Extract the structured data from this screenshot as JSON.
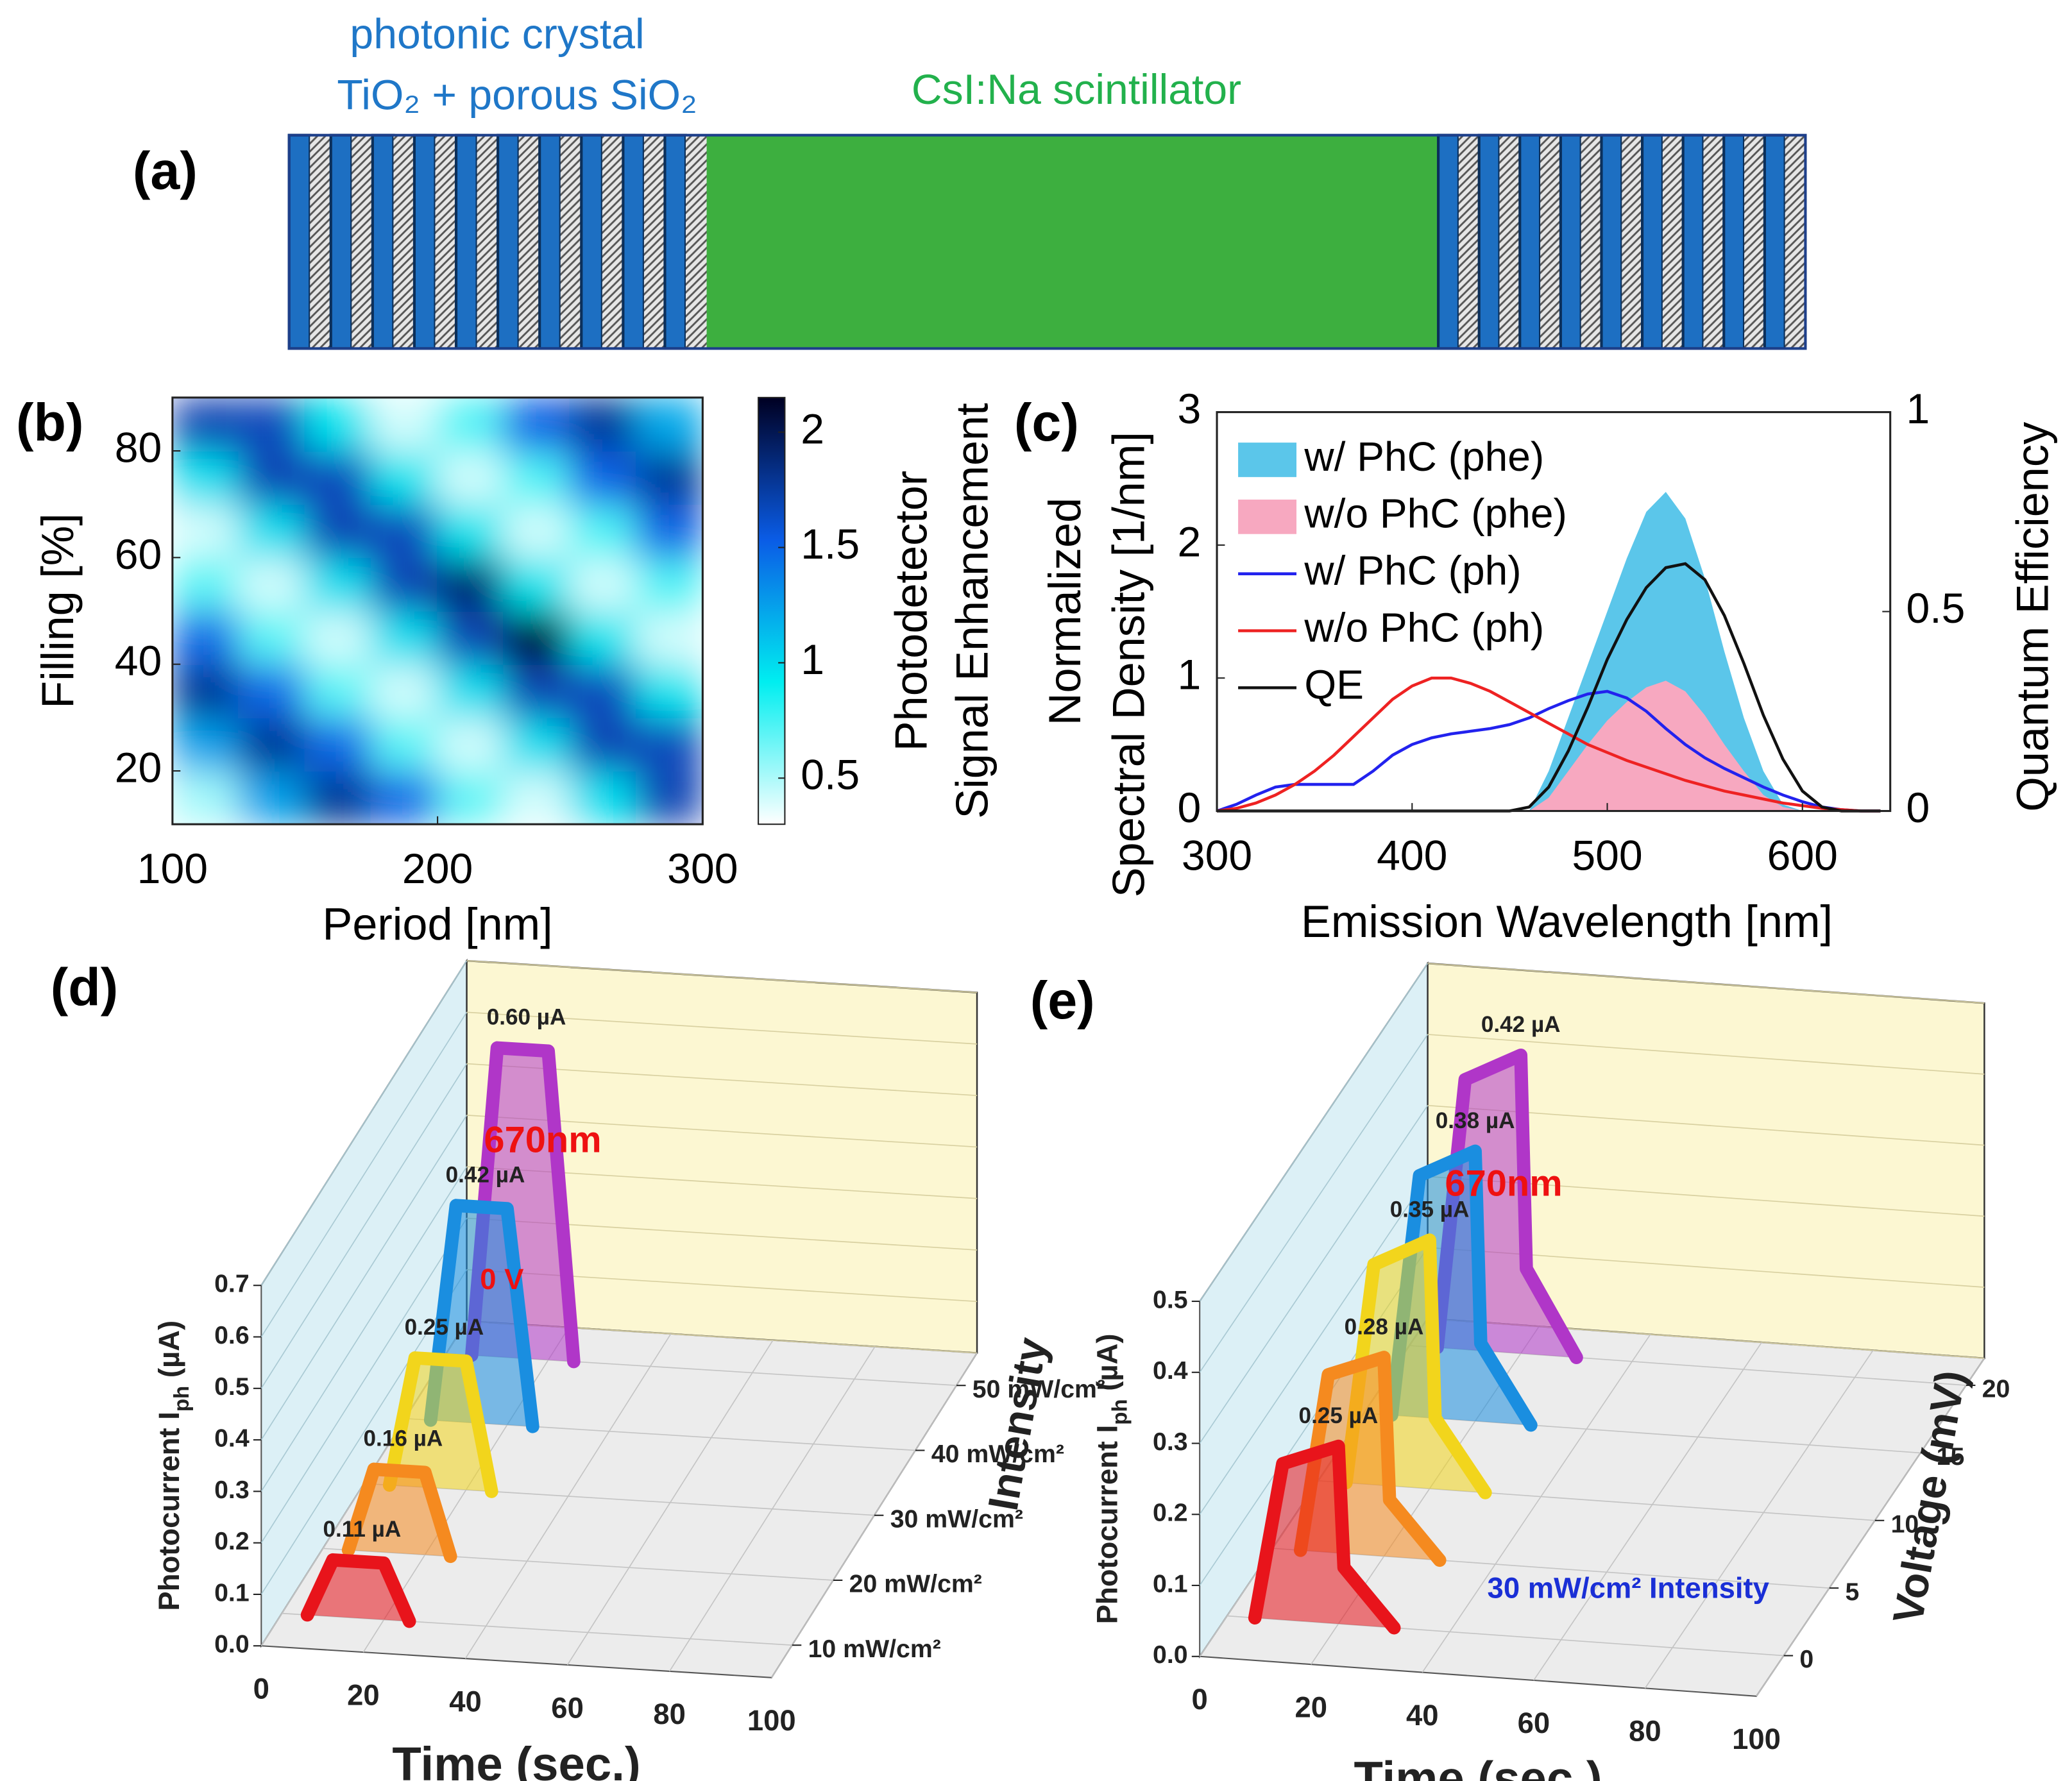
{
  "panel_a": {
    "label": "(a)",
    "crystal": [
      "photonic crystal",
      "TiO₂ + porous SiO₂"
    ],
    "scintillator": "CsI:Na scintillator"
  },
  "chart_data": [
    {
      "type": "heatmap",
      "panel": "(b)",
      "x": [
        112.5,
        137.5,
        162.5,
        187.5,
        212.5,
        237.5,
        262.5,
        287.5
      ],
      "y": [
        15,
        25,
        35,
        45,
        55,
        65,
        75,
        85
      ],
      "z": [
        [
          0.52,
          1.24,
          1.79,
          1.48,
          0.7,
          0.41,
          0.98,
          1.69
        ],
        [
          1.24,
          1.79,
          1.48,
          0.7,
          0.41,
          0.98,
          1.69,
          1.67
        ],
        [
          1.79,
          1.48,
          0.7,
          0.41,
          0.98,
          1.69,
          1.67,
          0.95
        ],
        [
          1.48,
          0.7,
          0.41,
          0.98,
          1.69,
          2.1,
          0.95,
          0.41
        ],
        [
          0.7,
          0.41,
          0.98,
          1.69,
          1.9,
          0.95,
          0.41,
          0.73
        ],
        [
          0.41,
          0.98,
          1.69,
          1.67,
          0.95,
          0.41,
          0.73,
          1.51
        ],
        [
          0.98,
          1.69,
          1.67,
          0.95,
          0.41,
          0.73,
          1.51,
          1.78
        ],
        [
          1.69,
          1.67,
          0.95,
          0.41,
          0.73,
          1.51,
          1.78,
          1.21
        ]
      ],
      "xlim": [
        100,
        300
      ],
      "ylim": [
        10,
        90
      ],
      "xticks": [
        100,
        200,
        300
      ],
      "yticks": [
        20,
        40,
        60,
        80
      ],
      "xlabel": "Period [nm]",
      "ylabel": "Filling  [%]",
      "colormap": [
        "#ffffff",
        "#00eef0",
        "#0a5ce6",
        "#000022"
      ],
      "clim": [
        0.3,
        2.15
      ],
      "colorbar_ticks": [
        0.5,
        1,
        1.5,
        2
      ],
      "colorbar_label": [
        "Photodetector",
        "Signal Enhancement"
      ]
    },
    {
      "type": "line",
      "panel": "(c)",
      "x": [
        300,
        310,
        320,
        330,
        340,
        350,
        360,
        370,
        380,
        390,
        400,
        410,
        420,
        430,
        440,
        450,
        460,
        470,
        480,
        490,
        500,
        510,
        520,
        530,
        540,
        550,
        560,
        570,
        580,
        590,
        600,
        610,
        620,
        630,
        640
      ],
      "series": [
        {
          "name": "w/ PhC (phe)",
          "color": "#5bc6ea",
          "style": "area",
          "values": [
            0,
            0,
            0,
            0,
            0,
            0,
            0,
            0,
            0,
            0,
            0,
            0,
            0,
            0,
            0,
            0,
            0,
            0.3,
            0.7,
            1.1,
            1.5,
            1.9,
            2.25,
            2.4,
            2.2,
            1.75,
            1.2,
            0.7,
            0.3,
            0.05,
            0,
            0,
            0,
            0,
            0
          ]
        },
        {
          "name": "w/o PhC (phe)",
          "color": "#f7a8c0",
          "style": "area",
          "values": [
            0,
            0,
            0,
            0,
            0,
            0,
            0,
            0,
            0,
            0,
            0,
            0,
            0,
            0,
            0,
            0,
            0,
            0.1,
            0.3,
            0.5,
            0.68,
            0.82,
            0.93,
            0.98,
            0.9,
            0.72,
            0.5,
            0.3,
            0.12,
            0.03,
            0,
            0,
            0,
            0,
            0
          ]
        },
        {
          "name": "w/ PhC (ph)",
          "color": "#2222ee",
          "style": "line",
          "values": [
            0,
            0.05,
            0.12,
            0.18,
            0.2,
            0.2,
            0.2,
            0.2,
            0.3,
            0.42,
            0.5,
            0.55,
            0.58,
            0.6,
            0.62,
            0.65,
            0.7,
            0.77,
            0.83,
            0.88,
            0.9,
            0.85,
            0.75,
            0.62,
            0.5,
            0.4,
            0.32,
            0.25,
            0.18,
            0.12,
            0.07,
            0.03,
            0.01,
            0,
            0
          ]
        },
        {
          "name": "w/o PhC (ph)",
          "color": "#ee2222",
          "style": "line",
          "values": [
            0,
            0.02,
            0.06,
            0.12,
            0.2,
            0.3,
            0.42,
            0.56,
            0.7,
            0.84,
            0.94,
            1.0,
            1.0,
            0.96,
            0.9,
            0.82,
            0.74,
            0.66,
            0.58,
            0.5,
            0.44,
            0.38,
            0.33,
            0.28,
            0.23,
            0.19,
            0.15,
            0.12,
            0.09,
            0.06,
            0.04,
            0.02,
            0.01,
            0,
            0
          ]
        },
        {
          "name": "QE",
          "color": "#111111",
          "style": "line",
          "axis": "y2",
          "values": [
            0,
            0,
            0,
            0,
            0,
            0,
            0,
            0,
            0,
            0,
            0,
            0,
            0,
            0,
            0,
            0,
            0.01,
            0.06,
            0.15,
            0.26,
            0.38,
            0.48,
            0.56,
            0.61,
            0.62,
            0.58,
            0.49,
            0.37,
            0.24,
            0.13,
            0.05,
            0.01,
            0,
            0,
            0
          ]
        }
      ],
      "xlim": [
        300,
        645
      ],
      "ylim": [
        0,
        3
      ],
      "y2lim": [
        0,
        1
      ],
      "xticks": [
        300,
        400,
        500,
        600
      ],
      "yticks": [
        0,
        1,
        2,
        3
      ],
      "y2ticks": [
        0,
        0.5,
        1
      ],
      "xlabel": "Emission Wavelength [nm]",
      "ylabel": [
        "Normalized",
        "Spectral Density [1/nm]"
      ],
      "y2label": "Quantum Efficiency",
      "legend": "upper left"
    },
    {
      "type": "pulse3d",
      "panel": "(d)",
      "x": [
        5,
        10,
        20,
        25
      ],
      "series": [
        {
          "color": "#e8141b",
          "values": [
            0,
            0.11,
            0.11,
            0
          ],
          "value_labels": [
            null,
            "0.11 µA",
            null,
            null
          ]
        },
        {
          "color": "#f58a1f",
          "values": [
            0,
            0.16,
            0.16,
            0
          ],
          "value_labels": [
            null,
            "0.16 µA",
            null,
            null
          ]
        },
        {
          "color": "#f2d51c",
          "values": [
            0,
            0.25,
            0.25,
            0
          ],
          "value_labels": [
            null,
            "0.25 µA",
            null,
            null
          ]
        },
        {
          "color": "#1a8ee0",
          "values": [
            0,
            0.42,
            0.42,
            0
          ],
          "value_labels": [
            null,
            "0.42 µA",
            null,
            null
          ]
        },
        {
          "color": "#b036c8",
          "values": [
            0,
            0.6,
            0.6,
            0
          ],
          "value_labels": [
            null,
            "0.60 µA",
            null,
            null
          ]
        }
      ],
      "zcategories": [
        "10 mW/cm²",
        "20 mW/cm²",
        "30 mW/cm²",
        "40 mW/cm²",
        "50 mW/cm²"
      ],
      "xlim": [
        0,
        100
      ],
      "xticks": [
        0,
        20,
        40,
        60,
        80,
        100
      ],
      "ylim": [
        0,
        0.7
      ],
      "yticks": [
        {
          "value": 0,
          "label": "0.0"
        },
        0.1,
        0.2,
        0.3,
        0.4,
        0.5,
        0.6,
        0.7
      ],
      "xlabel": "Time (sec.)",
      "ylabel": [
        "Photocurrent I",
        "ph",
        " (µA)"
      ],
      "zlabel": "Intensity",
      "annotations": [
        {
          "text": "670nm",
          "color": "#ee1111"
        },
        {
          "text": "0 V",
          "color": "#ee1111"
        }
      ]
    },
    {
      "type": "pulse3d",
      "panel": "(e)",
      "x": [
        5,
        10,
        20,
        21,
        30
      ],
      "series": [
        {
          "color": "#e8141b",
          "z": 0,
          "values": [
            0,
            0.22,
            0.25,
            0.08,
            0
          ],
          "value_labels": [
            null,
            null,
            "0.25 µA",
            null,
            null
          ]
        },
        {
          "color": "#f58a1f",
          "z": 5,
          "values": [
            0,
            0.25,
            0.28,
            0.08,
            0
          ],
          "value_labels": [
            null,
            null,
            "0.28 µA",
            null,
            null
          ]
        },
        {
          "color": "#f2d51c",
          "z": 10,
          "values": [
            0,
            0.31,
            0.35,
            0.1,
            0
          ],
          "value_labels": [
            null,
            null,
            "0.35 µA",
            null,
            null
          ]
        },
        {
          "color": "#1a8ee0",
          "z": 15,
          "values": [
            0,
            0.34,
            0.38,
            0.11,
            0
          ],
          "value_labels": [
            null,
            null,
            "0.38 µA",
            null,
            null
          ]
        },
        {
          "color": "#b036c8",
          "z": 20,
          "values": [
            0,
            0.38,
            0.42,
            0.12,
            0
          ],
          "value_labels": [
            null,
            null,
            "0.42 µA",
            null,
            null
          ]
        }
      ],
      "zlim": [
        -3,
        22
      ],
      "zticks": [
        0,
        5,
        10,
        15,
        20
      ],
      "xlim": [
        0,
        100
      ],
      "xticks": [
        0,
        20,
        40,
        60,
        80,
        100
      ],
      "ylim": [
        0,
        0.5
      ],
      "yticks": [
        {
          "value": 0,
          "label": "0.0"
        },
        0.1,
        0.2,
        0.3,
        0.4,
        0.5
      ],
      "xlabel": "Time (sec.)",
      "ylabel": [
        "Photocurrent I",
        "ph",
        " (µA)"
      ],
      "zlabel": "Voltage (mV)",
      "annotations": [
        {
          "text": "670nm",
          "color": "#ee1111"
        },
        {
          "text": "30 mW/cm² Intensity",
          "color": "#1a2fd6"
        }
      ]
    }
  ]
}
